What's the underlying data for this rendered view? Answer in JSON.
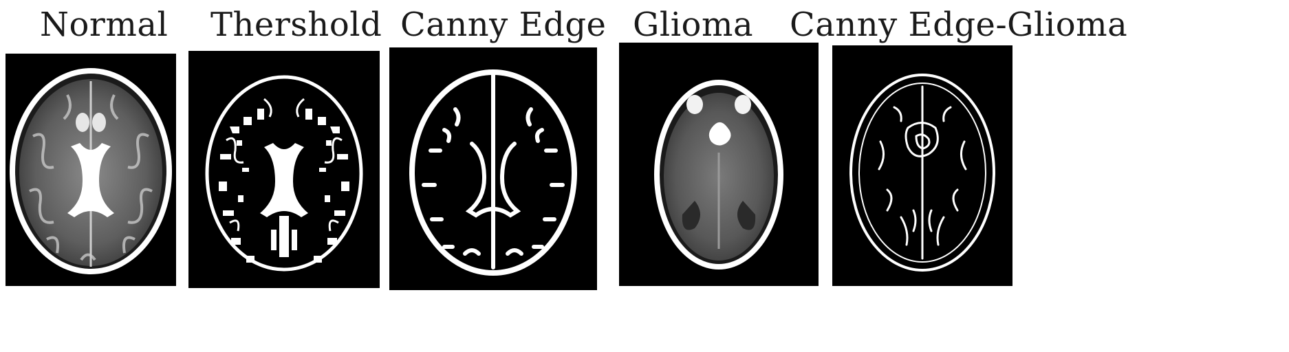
{
  "figure": {
    "panels": [
      {
        "id": "normal",
        "label": "Normal"
      },
      {
        "id": "threshold",
        "label": "Thershold"
      },
      {
        "id": "canny",
        "label": "Canny Edge"
      },
      {
        "id": "glioma",
        "label": "Glioma"
      },
      {
        "id": "canny_glioma",
        "label": "Canny Edge-Glioma"
      }
    ]
  }
}
